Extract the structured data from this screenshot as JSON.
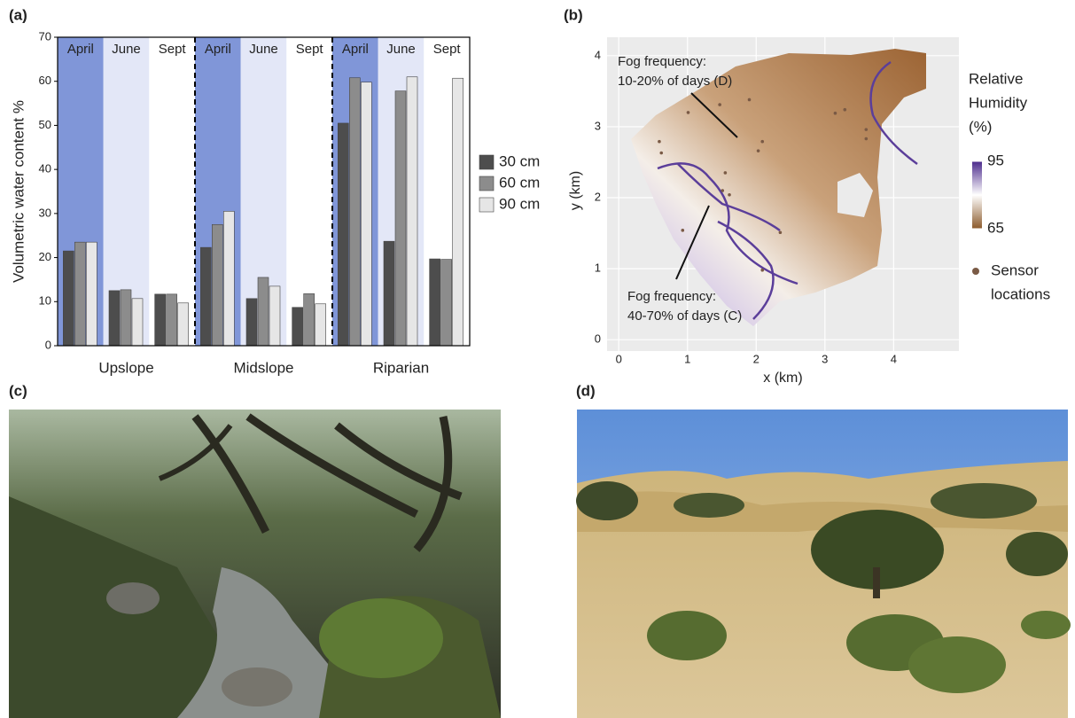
{
  "panel_labels": [
    "(a)",
    "(b)",
    "(c)",
    "(d)"
  ],
  "chart_data": [
    {
      "type": "bar",
      "ylabel": "Volumetric water content %",
      "categories": [
        "April",
        "June",
        "Sept",
        "April",
        "June",
        "Sept",
        "April",
        "June",
        "Sept"
      ],
      "groups": [
        "Upslope",
        "Midslope",
        "Riparian"
      ],
      "category_colors": [
        "#8096d8",
        "#e3e7f7",
        "#ffffff"
      ],
      "series": [
        {
          "name": "30 cm",
          "color": "#4d4d4d",
          "values": [
            21.5,
            12.5,
            11.7,
            22.3,
            10.7,
            8.7,
            50.5,
            23.7,
            19.7
          ]
        },
        {
          "name": "60 cm",
          "color": "#8c8c8c",
          "values": [
            23.5,
            12.7,
            11.7,
            27.5,
            15.5,
            11.8,
            60.8,
            57.8,
            19.6
          ]
        },
        {
          "name": "90 cm",
          "color": "#e6e6e6",
          "values": [
            23.5,
            10.7,
            9.7,
            30.5,
            13.5,
            9.5,
            59.8,
            61,
            60.7
          ]
        }
      ],
      "ylim": [
        0,
        70
      ],
      "yticks": [
        0,
        10,
        20,
        30,
        40,
        50,
        60,
        70
      ]
    },
    {
      "type": "map",
      "xlabel": "x (km)",
      "ylabel": "y (km)",
      "xlim": [
        -0.17,
        4.95
      ],
      "ylim": [
        -0.16,
        4.26
      ],
      "xticks": [
        0,
        1,
        2,
        3,
        4
      ],
      "yticks": [
        0,
        1,
        2,
        3,
        4
      ],
      "grid": true,
      "colorbar": {
        "title": [
          "Relative",
          "Humidity",
          "(%)"
        ],
        "clim": [
          65,
          95
        ],
        "ticks": [
          65,
          95
        ],
        "colors": [
          "#8b5a2b",
          "#ffffff",
          "#4b2a8c"
        ]
      },
      "sensors": {
        "name": [
          "Sensor",
          "locations"
        ],
        "color": "#7a5a45",
        "x": [
          0.59,
          0.62,
          1.01,
          1.47,
          1.9,
          2.09,
          2.03,
          3.15,
          3.6,
          3.6,
          3.29,
          1.51,
          1.61,
          1.55,
          0.93,
          2.35,
          2.09
        ],
        "y": [
          2.79,
          2.63,
          3.2,
          3.31,
          3.38,
          2.79,
          2.66,
          3.19,
          2.96,
          2.83,
          3.24,
          2.1,
          2.04,
          2.35,
          1.54,
          1.51,
          0.98
        ]
      },
      "annotations": [
        [
          "Fog frequency:",
          "10-20% of days (D)"
        ],
        [
          "Fog frequency:",
          "40-70% of days (C)"
        ]
      ]
    }
  ]
}
